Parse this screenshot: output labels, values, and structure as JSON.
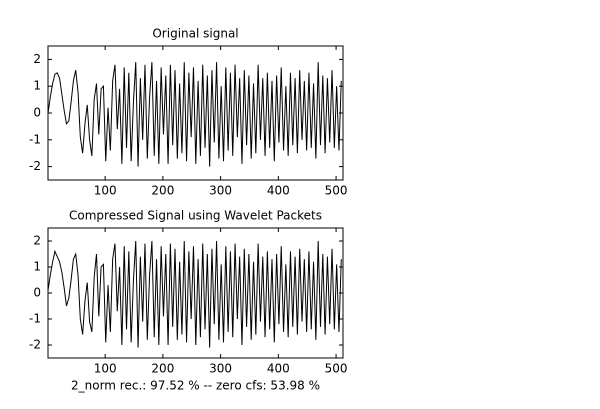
{
  "chart_data": [
    {
      "type": "line",
      "title": "Original signal",
      "x": [
        1,
        5,
        9,
        13,
        17,
        21,
        25,
        29,
        33,
        37,
        41,
        45,
        49,
        53,
        57,
        61,
        65,
        69,
        73,
        77,
        81,
        85,
        89,
        93,
        97,
        101,
        105,
        109,
        113,
        117,
        121,
        125,
        129,
        133,
        137,
        141,
        145,
        149,
        153,
        157,
        161,
        165,
        169,
        173,
        177,
        181,
        185,
        189,
        193,
        197,
        201,
        205,
        209,
        213,
        217,
        221,
        225,
        229,
        233,
        237,
        241,
        245,
        249,
        253,
        257,
        261,
        265,
        269,
        273,
        277,
        281,
        285,
        289,
        293,
        297,
        301,
        305,
        309,
        313,
        317,
        321,
        325,
        329,
        333,
        337,
        341,
        345,
        349,
        353,
        357,
        361,
        365,
        369,
        373,
        377,
        381,
        385,
        389,
        393,
        397,
        401,
        405,
        409,
        413,
        417,
        421,
        425,
        429,
        433,
        437,
        441,
        445,
        449,
        453,
        457,
        461,
        465,
        469,
        473,
        477,
        481,
        485,
        489,
        493,
        497,
        501,
        505,
        509
      ],
      "series": [
        {
          "color": "#000000",
          "values": [
            0,
            0.6,
            1.1,
            1.45,
            1.5,
            1.3,
            0.7,
            0.1,
            -0.4,
            -0.3,
            0.4,
            1.2,
            1.6,
            0.8,
            -0.9,
            -1.5,
            -0.4,
            0.3,
            -1.0,
            -1.6,
            0.5,
            1.1,
            -0.8,
            0.9,
            1.0,
            -1.8,
            0.2,
            -1.4,
            1.2,
            1.8,
            -0.6,
            0.9,
            -1.9,
            1.7,
            -1.3,
            1.5,
            -1.8,
            0.4,
            1.9,
            -2.0,
            1.3,
            -1.0,
            1.8,
            -1.7,
            0.6,
            1.9,
            -1.6,
            1.2,
            -1.9,
            1.7,
            -0.8,
            1.4,
            -1.9,
            1.8,
            -1.2,
            1.6,
            -1.7,
            1.1,
            -1.5,
            1.9,
            -1.8,
            1.5,
            -0.9,
            1.7,
            -1.9,
            1.2,
            -1.6,
            1.8,
            -1.3,
            1.4,
            -2.0,
            1.6,
            -1.1,
            1.9,
            -1.7,
            1.0,
            -1.8,
            1.7,
            -1.4,
            1.5,
            -1.6,
            1.8,
            -0.9,
            1.3,
            -1.9,
            1.6,
            -1.2,
            1.4,
            -1.7,
            1.1,
            -1.5,
            1.8,
            -1.0,
            1.3,
            -1.6,
            1.5,
            -1.3,
            1.2,
            -1.8,
            1.4,
            -1.1,
            1.7,
            -1.4,
            1.0,
            -1.6,
            1.5,
            -1.2,
            1.3,
            -1.5,
            1.6,
            -1.0,
            1.2,
            -1.4,
            1.5,
            -1.3,
            1.1,
            -1.7,
            1.9,
            -1.2,
            1.4,
            -1.5,
            1.3,
            -1.1,
            1.6,
            -1.3,
            1.0,
            -1.4,
            1.2
          ]
        }
      ],
      "xlim": [
        1,
        512
      ],
      "ylim": [
        -2.5,
        2.5
      ],
      "xticks": [
        100,
        200,
        300,
        400,
        500
      ],
      "yticks": [
        -2,
        -1,
        0,
        1,
        2
      ]
    },
    {
      "type": "line",
      "title": "Compressed Signal using Wavelet Packets",
      "xlabel": "2_norm rec.: 97.52 %  -- zero cfs: 53.98 %",
      "x": [
        1,
        5,
        9,
        13,
        17,
        21,
        25,
        29,
        33,
        37,
        41,
        45,
        49,
        53,
        57,
        61,
        65,
        69,
        73,
        77,
        81,
        85,
        89,
        93,
        97,
        101,
        105,
        109,
        113,
        117,
        121,
        125,
        129,
        133,
        137,
        141,
        145,
        149,
        153,
        157,
        161,
        165,
        169,
        173,
        177,
        181,
        185,
        189,
        193,
        197,
        201,
        205,
        209,
        213,
        217,
        221,
        225,
        229,
        233,
        237,
        241,
        245,
        249,
        253,
        257,
        261,
        265,
        269,
        273,
        277,
        281,
        285,
        289,
        293,
        297,
        301,
        305,
        309,
        313,
        317,
        321,
        325,
        329,
        333,
        337,
        341,
        345,
        349,
        353,
        357,
        361,
        365,
        369,
        373,
        377,
        381,
        385,
        389,
        393,
        397,
        401,
        405,
        409,
        413,
        417,
        421,
        425,
        429,
        433,
        437,
        441,
        445,
        449,
        453,
        457,
        461,
        465,
        469,
        473,
        477,
        481,
        485,
        489,
        493,
        497,
        501,
        505,
        509
      ],
      "series": [
        {
          "color": "#000000",
          "values": [
            0.1,
            0.7,
            1.2,
            1.6,
            1.4,
            1.2,
            0.8,
            0.2,
            -0.5,
            -0.2,
            0.5,
            1.3,
            1.5,
            0.7,
            -1.0,
            -1.6,
            -0.3,
            0.4,
            -1.1,
            -1.5,
            0.6,
            1.5,
            -0.9,
            1.0,
            1.1,
            -1.9,
            0.3,
            -1.5,
            1.3,
            1.9,
            -0.7,
            1.0,
            -2.0,
            1.8,
            -1.4,
            1.6,
            -1.9,
            0.5,
            2.0,
            -2.1,
            1.4,
            -1.1,
            1.9,
            -1.8,
            0.7,
            2.0,
            -1.7,
            1.3,
            -2.0,
            1.8,
            -0.9,
            1.5,
            -2.0,
            1.9,
            -1.3,
            1.7,
            -1.8,
            1.2,
            -1.6,
            2.0,
            -1.9,
            1.6,
            -1.0,
            1.8,
            -2.0,
            1.3,
            -1.7,
            1.9,
            -1.4,
            1.5,
            -2.1,
            1.7,
            -1.2,
            2.0,
            -1.8,
            1.1,
            -1.9,
            1.8,
            -1.5,
            1.6,
            -1.7,
            1.9,
            -1.0,
            1.4,
            -2.0,
            1.7,
            -1.3,
            1.5,
            -1.8,
            1.2,
            -1.6,
            1.9,
            -1.1,
            1.4,
            -1.7,
            1.6,
            -1.4,
            1.3,
            -1.9,
            1.5,
            -1.2,
            1.8,
            -1.5,
            1.1,
            -1.7,
            1.6,
            -1.3,
            1.4,
            -1.6,
            1.7,
            -1.1,
            1.3,
            -1.5,
            1.6,
            -1.4,
            1.2,
            -1.8,
            2.0,
            -1.3,
            1.5,
            -1.6,
            1.4,
            -1.2,
            1.7,
            -1.4,
            1.1,
            -1.5,
            1.3
          ]
        }
      ],
      "xlim": [
        1,
        512
      ],
      "ylim": [
        -2.5,
        2.5
      ],
      "xticks": [
        100,
        200,
        300,
        400,
        500
      ],
      "yticks": [
        -2,
        -1,
        0,
        1,
        2
      ]
    }
  ]
}
